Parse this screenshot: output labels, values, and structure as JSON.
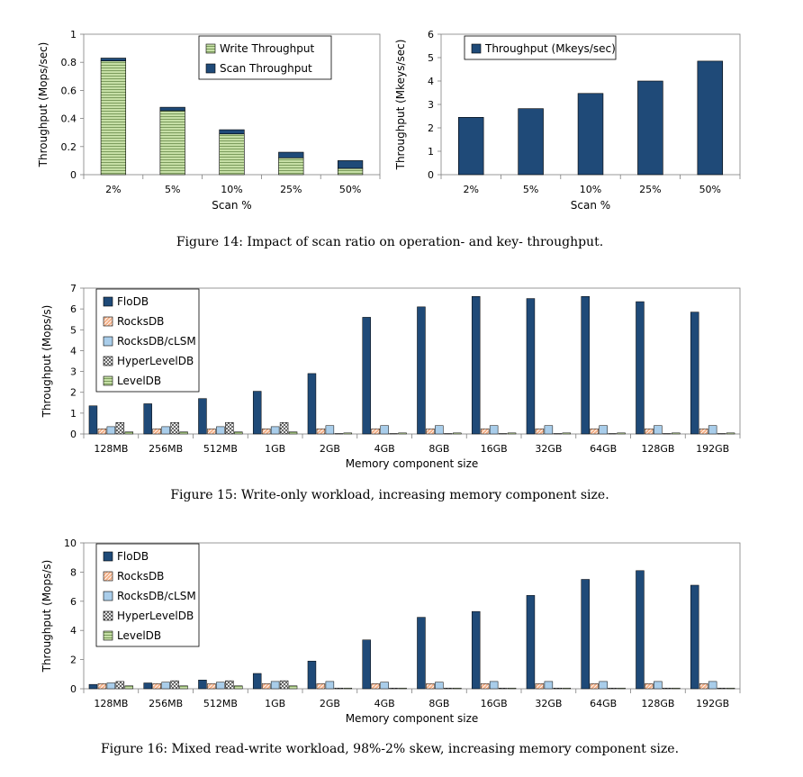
{
  "colors": {
    "flodb": "#1f4a78",
    "rocksdb": "#f4b28a",
    "rocksdb_clsm": "#a9cdea",
    "hyperleveldb": "#ffffff",
    "leveldb": "#c6dfa6",
    "scan": "#1f4a78",
    "write": "#c6dfa6"
  },
  "chart_data": [
    {
      "id": "fig14a",
      "type": "bar",
      "stacked": true,
      "categories": [
        "2%",
        "5%",
        "10%",
        "25%",
        "50%"
      ],
      "series": [
        {
          "name": "Write Throughput",
          "key": "write",
          "values": [
            0.81,
            0.455,
            0.29,
            0.12,
            0.045
          ]
        },
        {
          "name": "Scan Throughput",
          "key": "scan",
          "values": [
            0.02,
            0.025,
            0.03,
            0.04,
            0.055
          ]
        }
      ],
      "xlabel": "Scan %",
      "ylabel": "Throughput (Mops/sec)",
      "ylim": [
        0,
        1
      ],
      "yticks": [
        "0",
        "0.2",
        "0.4",
        "0.6",
        "0.8",
        "1"
      ],
      "ytick_values": [
        0,
        0.2,
        0.4,
        0.6,
        0.8,
        1
      ],
      "legend_position": "top-right"
    },
    {
      "id": "fig14b",
      "type": "bar",
      "categories": [
        "2%",
        "5%",
        "10%",
        "25%",
        "50%"
      ],
      "series": [
        {
          "name": "Throughput (Mkeys/sec)",
          "key": "scan",
          "values": [
            2.45,
            2.82,
            3.47,
            4.0,
            4.85
          ]
        }
      ],
      "xlabel": "Scan %",
      "ylabel": "Throughput (Mkeys/sec)",
      "ylim": [
        0,
        6
      ],
      "yticks": [
        "0",
        "1",
        "2",
        "3",
        "4",
        "5",
        "6"
      ],
      "ytick_values": [
        0,
        1,
        2,
        3,
        4,
        5,
        6
      ],
      "legend_position": "top-left"
    },
    {
      "id": "fig15",
      "type": "bar",
      "categories": [
        "128MB",
        "256MB",
        "512MB",
        "1GB",
        "2GB",
        "4GB",
        "8GB",
        "16GB",
        "32GB",
        "64GB",
        "128GB",
        "192GB"
      ],
      "series": [
        {
          "name": "FloDB",
          "key": "flodb",
          "values": [
            1.35,
            1.45,
            1.7,
            2.05,
            2.9,
            5.6,
            6.1,
            6.6,
            6.5,
            6.6,
            6.35,
            5.85
          ]
        },
        {
          "name": "RocksDB",
          "key": "rocksdb",
          "values": [
            0.25,
            0.25,
            0.25,
            0.25,
            0.25,
            0.25,
            0.25,
            0.25,
            0.25,
            0.25,
            0.25,
            0.25
          ]
        },
        {
          "name": "RocksDB/cLSM",
          "key": "rocksdb_clsm",
          "values": [
            0.35,
            0.35,
            0.35,
            0.35,
            0.4,
            0.4,
            0.4,
            0.4,
            0.4,
            0.4,
            0.4,
            0.4
          ]
        },
        {
          "name": "HyperLevelDB",
          "key": "hyperleveldb",
          "values": [
            0.55,
            0.55,
            0.55,
            0.55,
            0.02,
            0.02,
            0.02,
            0.02,
            0.02,
            0.02,
            0.02,
            0.02
          ]
        },
        {
          "name": "LevelDB",
          "key": "leveldb",
          "values": [
            0.1,
            0.1,
            0.1,
            0.1,
            0.05,
            0.05,
            0.05,
            0.05,
            0.05,
            0.05,
            0.05,
            0.05
          ]
        }
      ],
      "xlabel": "Memory component size",
      "ylabel": "Throughput (Mops/s)",
      "ylim": [
        0,
        7
      ],
      "yticks": [
        "0",
        "1",
        "2",
        "3",
        "4",
        "5",
        "6",
        "7"
      ],
      "ytick_values": [
        0,
        1,
        2,
        3,
        4,
        5,
        6,
        7
      ],
      "legend_position": "top-left"
    },
    {
      "id": "fig16",
      "type": "bar",
      "categories": [
        "128MB",
        "256MB",
        "512MB",
        "1GB",
        "2GB",
        "4GB",
        "8GB",
        "16GB",
        "32GB",
        "64GB",
        "128GB",
        "192GB"
      ],
      "series": [
        {
          "name": "FloDB",
          "key": "flodb",
          "values": [
            0.3,
            0.4,
            0.6,
            1.05,
            1.9,
            3.35,
            4.9,
            5.3,
            6.4,
            7.5,
            8.1,
            7.1
          ]
        },
        {
          "name": "RocksDB",
          "key": "rocksdb",
          "values": [
            0.35,
            0.35,
            0.35,
            0.35,
            0.35,
            0.35,
            0.35,
            0.35,
            0.35,
            0.35,
            0.35,
            0.35
          ]
        },
        {
          "name": "RocksDB/cLSM",
          "key": "rocksdb_clsm",
          "values": [
            0.4,
            0.45,
            0.45,
            0.5,
            0.5,
            0.45,
            0.45,
            0.5,
            0.5,
            0.5,
            0.5,
            0.5
          ]
        },
        {
          "name": "HyperLevelDB",
          "key": "hyperleveldb",
          "values": [
            0.5,
            0.55,
            0.55,
            0.55,
            0.05,
            0.05,
            0.05,
            0.05,
            0.05,
            0.05,
            0.05,
            0.05
          ]
        },
        {
          "name": "LevelDB",
          "key": "leveldb",
          "values": [
            0.2,
            0.2,
            0.2,
            0.2,
            0.05,
            0.05,
            0.05,
            0.05,
            0.05,
            0.05,
            0.05,
            0.05
          ]
        }
      ],
      "xlabel": "Memory component size",
      "ylabel": "Throughput (Mops/s)",
      "ylim": [
        0,
        10
      ],
      "yticks": [
        "0",
        "2",
        "4",
        "6",
        "8",
        "10"
      ],
      "ytick_values": [
        0,
        2,
        4,
        6,
        8,
        10
      ],
      "legend_position": "top-left"
    }
  ],
  "captions": {
    "fig14": "Figure 14: Impact of scan ratio on operation- and key- throughput.",
    "fig15": "Figure 15: Write-only workload, increasing memory component size.",
    "fig16": "Figure 16: Mixed read-write workload, 98%-2% skew, increasing memory component size."
  }
}
